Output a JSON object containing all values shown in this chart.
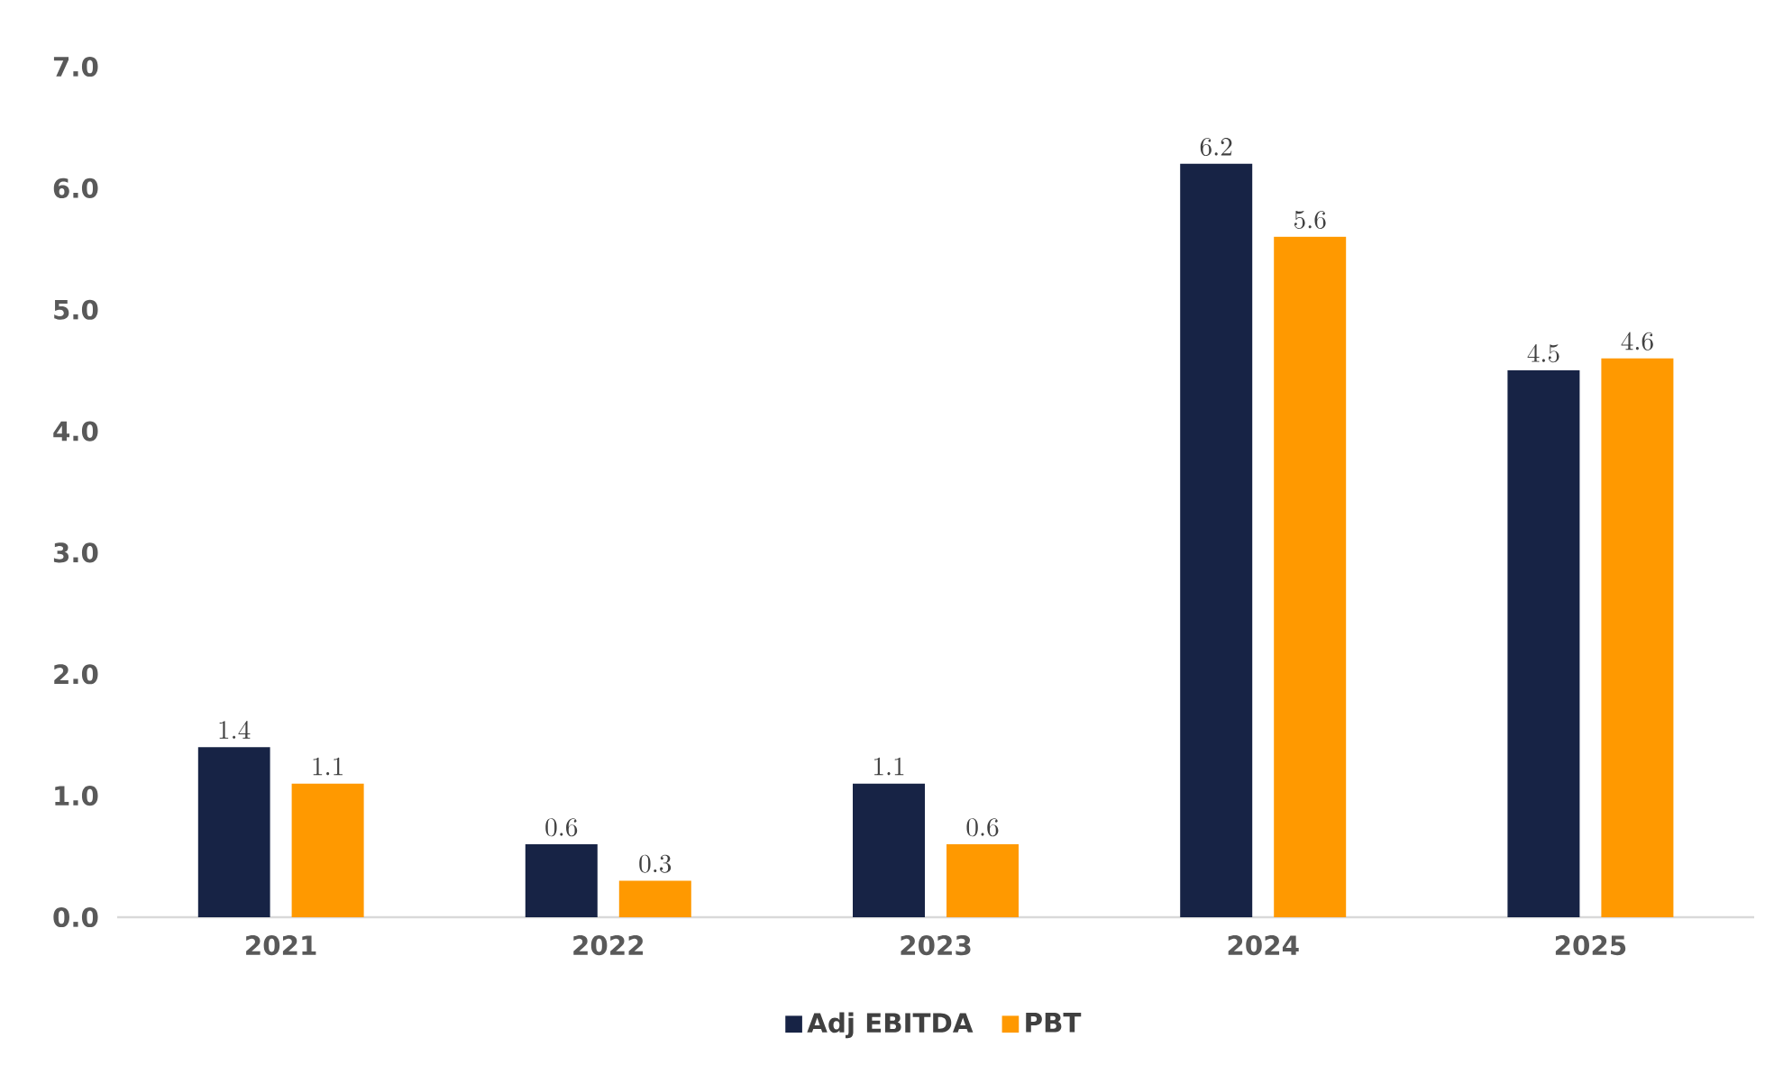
{
  "chart_data": {
    "type": "bar",
    "categories": [
      "2021",
      "2022",
      "2023",
      "2024",
      "2025"
    ],
    "series": [
      {
        "name": "Adj EBITDA",
        "color": "#172345",
        "values": [
          1.4,
          0.6,
          1.1,
          6.2,
          4.5
        ]
      },
      {
        "name": "PBT",
        "color": "#ff9900",
        "values": [
          1.1,
          0.3,
          0.6,
          5.6,
          4.6
        ]
      }
    ],
    "ylim": [
      0,
      7
    ],
    "yticks": [
      {
        "value": 0,
        "label": "0.0"
      },
      {
        "value": 1,
        "label": "1.0"
      },
      {
        "value": 2,
        "label": "2.0"
      },
      {
        "value": 3,
        "label": "3.0"
      },
      {
        "value": 4,
        "label": "4.0"
      },
      {
        "value": 5,
        "label": "5.0"
      },
      {
        "value": 6,
        "label": "6.0"
      },
      {
        "value": 7,
        "label": "7.0"
      }
    ],
    "data_labels": true,
    "legend": "bottom",
    "grid": false
  }
}
